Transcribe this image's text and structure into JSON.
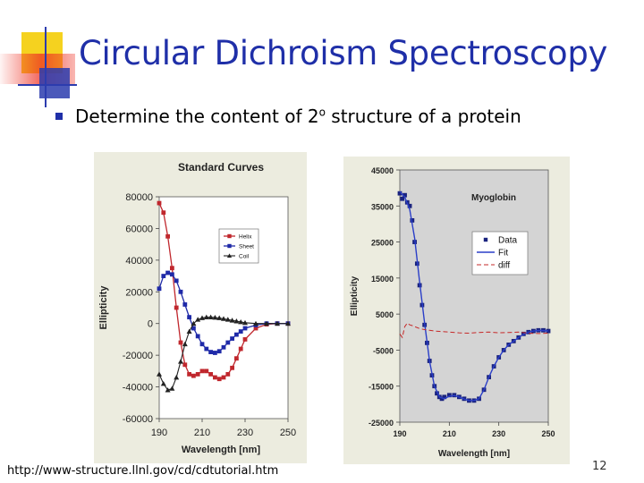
{
  "slide": {
    "title": "Circular Dichroism Spectroscopy",
    "bullet_before": "Determine the content of 2",
    "bullet_sup": "o",
    "bullet_after": " structure of a protein",
    "source_url": "http://www-structure.llnl.gov/cd/cdtutorial.htm",
    "page_number": "12"
  },
  "colors": {
    "title": "#1f2fa8",
    "deco_yellow": "#f5d21f",
    "deco_red": "#ee3124",
    "deco_blue": "#2c3cae",
    "helix": "#c0272d",
    "sheet": "#1f2aa8",
    "coil": "#222222"
  },
  "chart_data": [
    {
      "type": "line",
      "title": "Standard Curves",
      "xlabel": "Wavelength [nm]",
      "ylabel": "Ellipticity",
      "xlim": [
        190,
        250
      ],
      "ylim": [
        -60000,
        80000
      ],
      "x_ticks": [
        "190",
        "210",
        "230",
        "250"
      ],
      "y_ticks": [
        "80000",
        "60000",
        "40000",
        "20000",
        "0",
        "-20000",
        "-40000",
        "-60000"
      ],
      "grid": false,
      "legend_position": "top-right",
      "series": [
        {
          "name": "Helix",
          "x": [
            190,
            192,
            194,
            196,
            198,
            200,
            202,
            204,
            206,
            208,
            210,
            212,
            214,
            216,
            218,
            220,
            222,
            224,
            226,
            228,
            230,
            235,
            240,
            245,
            250
          ],
          "y": [
            76000,
            70000,
            55000,
            35000,
            10000,
            -12000,
            -26000,
            -32000,
            -33000,
            -32000,
            -30000,
            -30000,
            -32000,
            -34000,
            -35000,
            -34000,
            -32000,
            -28000,
            -22000,
            -16000,
            -10000,
            -3000,
            -500,
            0,
            0
          ]
        },
        {
          "name": "Sheet",
          "x": [
            190,
            192,
            194,
            196,
            198,
            200,
            202,
            204,
            206,
            208,
            210,
            212,
            214,
            216,
            218,
            220,
            222,
            224,
            226,
            228,
            230,
            235,
            240,
            245,
            250
          ],
          "y": [
            22000,
            30000,
            32000,
            31000,
            27000,
            20000,
            12000,
            4000,
            -3000,
            -8000,
            -13000,
            -16000,
            -18000,
            -18500,
            -17500,
            -15000,
            -12000,
            -9500,
            -7000,
            -5000,
            -3000,
            -1000,
            0,
            0,
            0
          ]
        },
        {
          "name": "Coil",
          "x": [
            190,
            192,
            194,
            196,
            198,
            200,
            202,
            204,
            206,
            208,
            210,
            212,
            214,
            216,
            218,
            220,
            222,
            224,
            226,
            228,
            230,
            235,
            240,
            245,
            250
          ],
          "y": [
            -32000,
            -38000,
            -42000,
            -41000,
            -34000,
            -24000,
            -13000,
            -5000,
            0,
            2500,
            3500,
            4000,
            4000,
            3800,
            3500,
            3000,
            2500,
            2000,
            1500,
            1000,
            500,
            0,
            0,
            0,
            0
          ]
        }
      ]
    },
    {
      "type": "line",
      "title": "Myoglobin",
      "xlabel": "Wavelength [nm]",
      "ylabel": "Ellipticity",
      "xlim": [
        190,
        250
      ],
      "ylim": [
        -25000,
        45000
      ],
      "x_ticks": [
        "190",
        "210",
        "230",
        "250"
      ],
      "y_ticks": [
        "45000",
        "35000",
        "25000",
        "15000",
        "5000",
        "-5000",
        "-15000",
        "-25000"
      ],
      "grid": false,
      "legend_position": "top-right",
      "series": [
        {
          "name": "Data",
          "x": [
            190,
            191,
            192,
            193,
            194,
            195,
            196,
            197,
            198,
            199,
            200,
            201,
            202,
            203,
            204,
            205,
            206,
            207,
            208,
            210,
            212,
            214,
            216,
            218,
            220,
            222,
            224,
            226,
            228,
            230,
            232,
            234,
            236,
            238,
            240,
            242,
            244,
            246,
            248,
            250
          ],
          "y": [
            38500,
            37000,
            38000,
            36000,
            35000,
            31000,
            25000,
            19000,
            13000,
            7500,
            2000,
            -3000,
            -8000,
            -12000,
            -15000,
            -17000,
            -18000,
            -18500,
            -18000,
            -17500,
            -17500,
            -18000,
            -18500,
            -19000,
            -19000,
            -18500,
            -16000,
            -12500,
            -9500,
            -7000,
            -5000,
            -3500,
            -2500,
            -1500,
            -500,
            0,
            300,
            500,
            500,
            300
          ]
        },
        {
          "name": "Fit",
          "x": [
            190,
            192,
            194,
            196,
            198,
            200,
            202,
            204,
            206,
            208,
            210,
            212,
            214,
            216,
            218,
            220,
            222,
            224,
            226,
            228,
            230,
            232,
            234,
            236,
            238,
            240,
            242,
            244,
            246,
            248,
            250
          ],
          "y": [
            39000,
            37500,
            34000,
            26000,
            14000,
            2500,
            -8000,
            -15000,
            -18000,
            -18500,
            -17800,
            -17600,
            -18000,
            -18600,
            -19000,
            -19000,
            -18500,
            -16000,
            -12500,
            -9500,
            -7000,
            -5000,
            -3500,
            -2500,
            -1500,
            -600,
            0,
            300,
            450,
            450,
            300
          ]
        },
        {
          "name": "diff",
          "x": [
            190,
            191,
            192,
            193,
            194,
            195,
            196,
            198,
            200,
            202,
            204,
            206,
            208,
            210,
            214,
            218,
            222,
            226,
            230,
            234,
            238,
            242,
            246,
            250
          ],
          "y": [
            -500,
            -1500,
            1500,
            2500,
            2000,
            1800,
            1500,
            1000,
            700,
            500,
            300,
            200,
            100,
            0,
            -200,
            -300,
            -100,
            0,
            -200,
            -100,
            0,
            -300,
            -400,
            -300
          ]
        }
      ]
    }
  ]
}
